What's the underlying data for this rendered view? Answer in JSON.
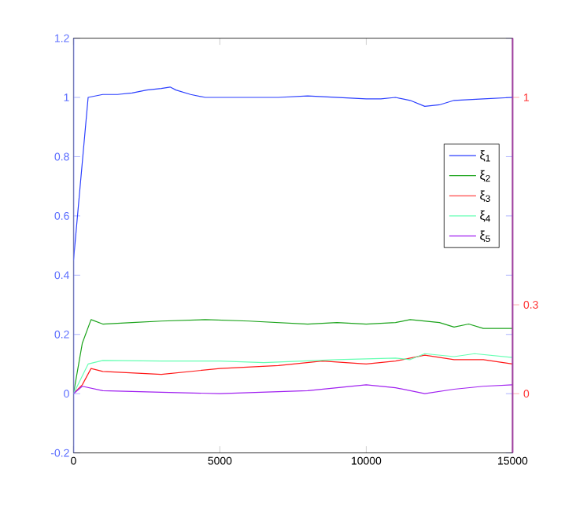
{
  "chart_data": {
    "type": "line",
    "xlim": [
      0,
      15000
    ],
    "xticks": [
      0,
      5000,
      10000,
      15000
    ],
    "ylim": [
      -0.2,
      1.2
    ],
    "yticks": [
      -0.2,
      0,
      0.2,
      0.4,
      0.6,
      0.8,
      1,
      1.2
    ],
    "y2lim": [
      -0.2,
      1.2
    ],
    "y2ticks": [
      0,
      0.3,
      1
    ],
    "legend": "right",
    "grid": false,
    "marker": "none",
    "line_style": "solid",
    "series": [
      {
        "name": "ξ$_{1}$",
        "color": "#2b3fff",
        "x": [
          0,
          500,
          1000,
          1500,
          2000,
          2500,
          3000,
          3300,
          3500,
          4000,
          4500,
          5000,
          6000,
          7000,
          8000,
          9000,
          10000,
          10500,
          11000,
          11500,
          12000,
          12500,
          13000,
          14000,
          15000
        ],
        "values": [
          0.45,
          1.0,
          1.01,
          1.01,
          1.015,
          1.025,
          1.03,
          1.035,
          1.025,
          1.01,
          1.0,
          1.0,
          1.0,
          1.0,
          1.005,
          1.0,
          0.995,
          0.995,
          1.0,
          0.99,
          0.97,
          0.975,
          0.99,
          0.995,
          1.0
        ]
      },
      {
        "name": "ξ$_{2}$",
        "color": "#1aa31a",
        "x": [
          0,
          300,
          600,
          1000,
          2000,
          3000,
          4500,
          6000,
          8000,
          9000,
          10000,
          11000,
          11500,
          12500,
          13000,
          13500,
          14000,
          15000
        ],
        "values": [
          0,
          0.17,
          0.25,
          0.235,
          0.24,
          0.245,
          0.25,
          0.245,
          0.235,
          0.24,
          0.235,
          0.24,
          0.25,
          0.24,
          0.225,
          0.235,
          0.22,
          0.22
        ]
      },
      {
        "name": "ξ$_{3}$",
        "color": "#ff1a1a",
        "x": [
          0,
          300,
          600,
          1000,
          3000,
          5000,
          7000,
          8500,
          10000,
          11000,
          12000,
          13000,
          14000,
          15000
        ],
        "values": [
          0,
          0.03,
          0.085,
          0.075,
          0.065,
          0.085,
          0.095,
          0.11,
          0.1,
          0.11,
          0.13,
          0.115,
          0.115,
          0.1
        ]
      },
      {
        "name": "ξ$_{4}$",
        "color": "#66ffb3",
        "x": [
          0,
          500,
          1000,
          3000,
          5000,
          6500,
          9000,
          11000,
          11500,
          12000,
          13000,
          13700,
          15000
        ],
        "values": [
          0,
          0.1,
          0.112,
          0.11,
          0.11,
          0.105,
          0.115,
          0.12,
          0.115,
          0.135,
          0.125,
          0.135,
          0.122
        ]
      },
      {
        "name": "ξ$_{5}$",
        "color": "#a020f0",
        "x": [
          0,
          300,
          1000,
          3000,
          5000,
          8000,
          10000,
          11000,
          12000,
          13000,
          14000,
          15000
        ],
        "values": [
          0,
          0.025,
          0.01,
          0.005,
          0,
          0.01,
          0.03,
          0.02,
          0,
          0.015,
          0.025,
          0.03
        ]
      }
    ]
  }
}
